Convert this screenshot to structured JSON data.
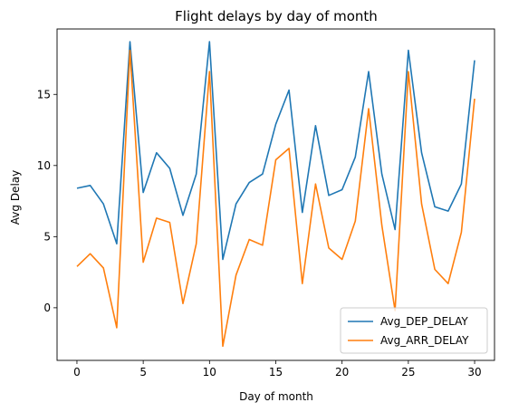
{
  "chart_data": {
    "type": "line",
    "title": "Flight delays by day of month",
    "xlabel": "Day of month",
    "ylabel": "Avg Delay",
    "xlim": [
      -1.5,
      31.5
    ],
    "ylim": [
      -3.7,
      19.6
    ],
    "xticks": [
      0,
      5,
      10,
      15,
      20,
      25,
      30
    ],
    "yticks": [
      0,
      5,
      10,
      15
    ],
    "grid": false,
    "legend_position": "lower right",
    "x": [
      0,
      1,
      2,
      3,
      4,
      5,
      6,
      7,
      8,
      9,
      10,
      11,
      12,
      13,
      14,
      15,
      16,
      17,
      18,
      19,
      20,
      21,
      22,
      23,
      24,
      25,
      26,
      27,
      28,
      29,
      30
    ],
    "series": [
      {
        "name": "Avg_DEP_DELAY",
        "color": "#1f77b4",
        "values": [
          8.4,
          8.6,
          7.3,
          4.5,
          18.7,
          8.1,
          10.9,
          9.8,
          6.5,
          9.4,
          18.7,
          3.4,
          7.3,
          8.8,
          9.4,
          12.9,
          15.3,
          6.7,
          12.8,
          7.9,
          8.3,
          10.6,
          16.6,
          9.4,
          5.5,
          18.1,
          10.9,
          7.1,
          6.8,
          8.7,
          17.4
        ]
      },
      {
        "name": "Avg_ARR_DELAY",
        "color": "#ff7f0e",
        "values": [
          2.9,
          3.8,
          2.8,
          -1.4,
          18.1,
          3.2,
          6.3,
          6.0,
          0.3,
          4.5,
          16.6,
          -2.7,
          2.3,
          4.8,
          4.4,
          10.4,
          11.2,
          1.7,
          8.7,
          4.2,
          3.4,
          6.1,
          14.0,
          5.8,
          -0.2,
          16.6,
          7.3,
          2.7,
          1.7,
          5.3,
          14.7
        ]
      }
    ]
  }
}
